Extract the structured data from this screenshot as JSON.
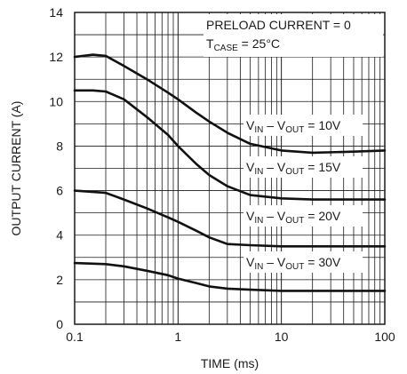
{
  "chart_data": {
    "type": "line",
    "x_scale": "log",
    "xlabel": "TIME (ms)",
    "ylabel": "OUTPUT CURRENT (A)",
    "xlim": [
      0.1,
      100
    ],
    "ylim": [
      0,
      14
    ],
    "grid": true,
    "x_ticks": [
      "0.1",
      "1",
      "10",
      "100"
    ],
    "y_ticks": [
      "0",
      "2",
      "4",
      "6",
      "8",
      "10",
      "12",
      "14"
    ],
    "annotations": {
      "preload": "PRELOAD CURRENT = 0",
      "tcase_main": "T",
      "tcase_sub": "CASE",
      "tcase_value": " = 25°C"
    },
    "series": [
      {
        "label_prefix_main": "V",
        "label_prefix_sub": "IN",
        "label_mid_main": " – V",
        "label_mid_sub": "OUT",
        "label_value": " = 10V",
        "points": [
          [
            0.1,
            12.0
          ],
          [
            0.15,
            12.1
          ],
          [
            0.2,
            12.05
          ],
          [
            0.3,
            11.6
          ],
          [
            0.5,
            11.0
          ],
          [
            0.8,
            10.4
          ],
          [
            1.0,
            10.1
          ],
          [
            1.5,
            9.5
          ],
          [
            2,
            9.1
          ],
          [
            3,
            8.6
          ],
          [
            5,
            8.1
          ],
          [
            10,
            7.8
          ],
          [
            20,
            7.7
          ],
          [
            50,
            7.75
          ],
          [
            100,
            7.8
          ]
        ]
      },
      {
        "label_prefix_main": "V",
        "label_prefix_sub": "IN",
        "label_mid_main": " – V",
        "label_mid_sub": "OUT",
        "label_value": " = 15V",
        "points": [
          [
            0.1,
            10.5
          ],
          [
            0.15,
            10.5
          ],
          [
            0.2,
            10.45
          ],
          [
            0.3,
            10.1
          ],
          [
            0.5,
            9.3
          ],
          [
            0.8,
            8.5
          ],
          [
            1.0,
            8.0
          ],
          [
            1.5,
            7.2
          ],
          [
            2,
            6.7
          ],
          [
            3,
            6.2
          ],
          [
            5,
            5.8
          ],
          [
            10,
            5.65
          ],
          [
            20,
            5.6
          ],
          [
            50,
            5.6
          ],
          [
            100,
            5.6
          ]
        ]
      },
      {
        "label_prefix_main": "V",
        "label_prefix_sub": "IN",
        "label_mid_main": " – V",
        "label_mid_sub": "OUT",
        "label_value": " = 20V",
        "points": [
          [
            0.1,
            6.0
          ],
          [
            0.2,
            5.9
          ],
          [
            0.3,
            5.6
          ],
          [
            0.5,
            5.2
          ],
          [
            0.8,
            4.8
          ],
          [
            1.0,
            4.6
          ],
          [
            1.5,
            4.2
          ],
          [
            2,
            3.9
          ],
          [
            3,
            3.6
          ],
          [
            5,
            3.55
          ],
          [
            10,
            3.5
          ],
          [
            50,
            3.5
          ],
          [
            100,
            3.5
          ]
        ]
      },
      {
        "label_prefix_main": "V",
        "label_prefix_sub": "IN",
        "label_mid_main": " – V",
        "label_mid_sub": "OUT",
        "label_value": " = 30V",
        "points": [
          [
            0.1,
            2.75
          ],
          [
            0.2,
            2.7
          ],
          [
            0.3,
            2.6
          ],
          [
            0.5,
            2.4
          ],
          [
            0.8,
            2.2
          ],
          [
            1.0,
            2.05
          ],
          [
            1.5,
            1.85
          ],
          [
            2,
            1.7
          ],
          [
            3,
            1.6
          ],
          [
            5,
            1.55
          ],
          [
            10,
            1.5
          ],
          [
            100,
            1.5
          ]
        ]
      }
    ]
  }
}
